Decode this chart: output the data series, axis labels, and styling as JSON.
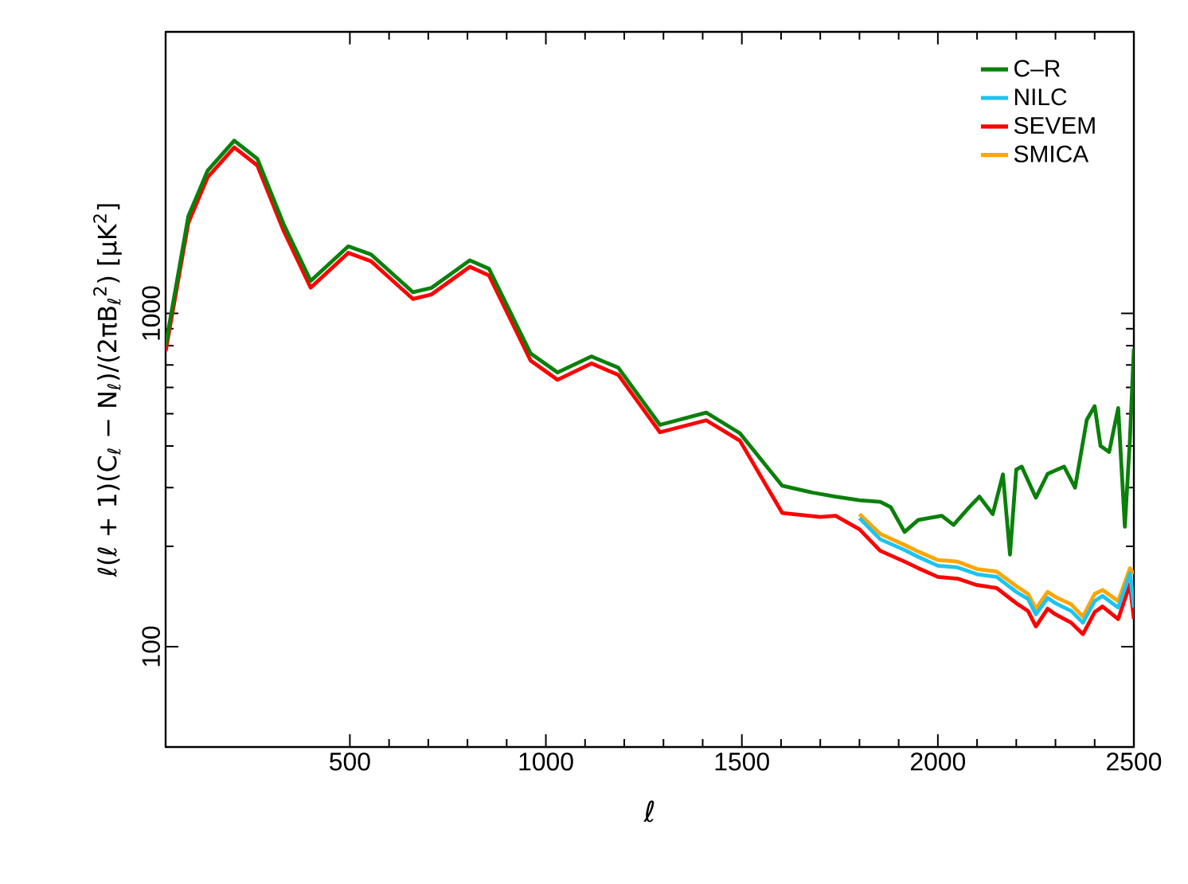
{
  "chart_data": {
    "type": "line",
    "xlabel": "ℓ",
    "ylabel": "ℓ(ℓ + 1)(C$_{ℓ}$ − N$_{ℓ}$)/(2πB$_{ℓ}$$^{2}$)    [μK$^{2}$]",
    "xlim": [
      30,
      2500
    ],
    "ylim": [
      50,
      7000
    ],
    "xticks": [
      500,
      1000,
      1500,
      2000,
      2500
    ],
    "yticks": [
      100,
      1000
    ],
    "log": "y",
    "legend": "top right",
    "series": [
      {
        "name": "C–R",
        "color": "#0a800a",
        "x": [
          30,
          88,
          137,
          205,
          264,
          331,
          400,
          496,
          554,
          661,
          708,
          806,
          855,
          961,
          1030,
          1116,
          1185,
          1291,
          1409,
          1495,
          1603,
          1680,
          1739,
          1800,
          1853,
          1880,
          1915,
          1950,
          2010,
          2040,
          2080,
          2106,
          2140,
          2166,
          2184,
          2200,
          2214,
          2250,
          2280,
          2322,
          2350,
          2380,
          2400,
          2415,
          2437,
          2460,
          2477,
          2490,
          2500
        ],
        "values": [
          802,
          1958,
          2680,
          3300,
          2910,
          1853,
          1252,
          1590,
          1503,
          1158,
          1193,
          1443,
          1361,
          759,
          665,
          743,
          687,
          463,
          504,
          437,
          304,
          290,
          282,
          275,
          272,
          262,
          221,
          240,
          247,
          232,
          262,
          282,
          250,
          329,
          189,
          340,
          347,
          280,
          330,
          347,
          300,
          480,
          527,
          400,
          384,
          520,
          229,
          420,
          785
        ]
      },
      {
        "name": "NILC",
        "color": "#1ec3f0",
        "x": [
          1800,
          1853,
          1915,
          1950,
          2000,
          2050,
          2100,
          2150,
          2200,
          2230,
          2250,
          2280,
          2300,
          2340,
          2370,
          2400,
          2420,
          2460,
          2490,
          2500
        ],
        "values": [
          243,
          210,
          195,
          186,
          175,
          173,
          165,
          162,
          146,
          139,
          125,
          140,
          135,
          128,
          118,
          137,
          142,
          131,
          166,
          131
        ]
      },
      {
        "name": "SEVEM",
        "color": "#ff0000",
        "x": [
          30,
          88,
          137,
          205,
          264,
          331,
          400,
          496,
          554,
          661,
          708,
          806,
          855,
          961,
          1030,
          1116,
          1185,
          1291,
          1409,
          1495,
          1603,
          1700,
          1739,
          1800,
          1853,
          1915,
          1950,
          2000,
          2050,
          2100,
          2150,
          2200,
          2230,
          2250,
          2280,
          2300,
          2340,
          2370,
          2400,
          2420,
          2460,
          2490,
          2500
        ],
        "values": [
          770,
          1870,
          2560,
          3150,
          2780,
          1770,
          1195,
          1520,
          1435,
          1105,
          1140,
          1380,
          1300,
          722,
          632,
          708,
          654,
          440,
          478,
          415,
          252,
          245,
          247,
          225,
          194,
          180,
          172,
          162,
          160,
          153,
          150,
          135,
          128,
          115,
          130,
          125,
          118,
          109,
          127,
          132,
          121,
          154,
          121
        ]
      },
      {
        "name": "SMICA",
        "color": "#ffa500",
        "x": [
          1800,
          1853,
          1915,
          1950,
          2000,
          2050,
          2100,
          2150,
          2200,
          2230,
          2250,
          2280,
          2300,
          2340,
          2370,
          2400,
          2420,
          2460,
          2490,
          2500
        ],
        "values": [
          250,
          218,
          202,
          193,
          182,
          180,
          171,
          168,
          152,
          144,
          130,
          146,
          141,
          134,
          123,
          144,
          148,
          137,
          172,
          165
        ]
      }
    ]
  }
}
